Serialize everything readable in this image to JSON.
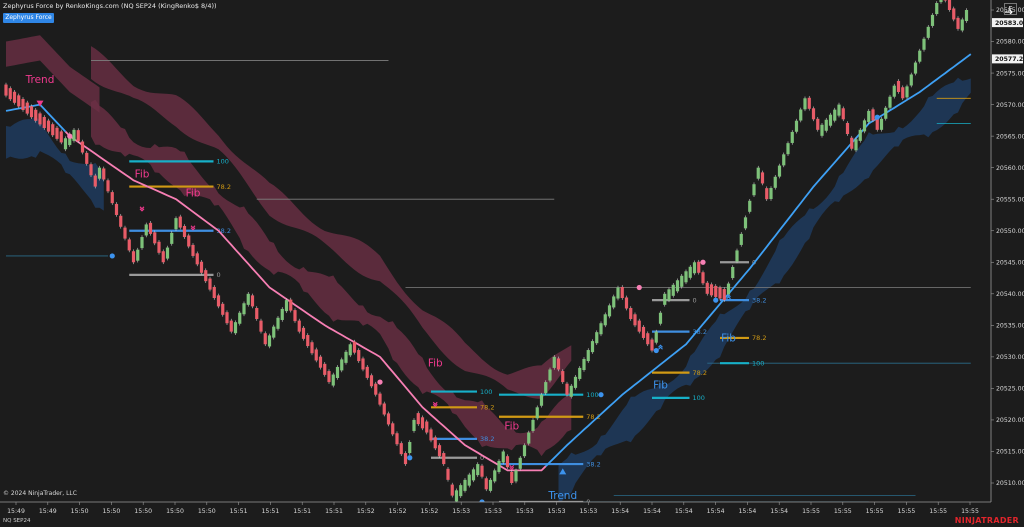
{
  "header": {
    "title": "Zephyrus Force by RenkoKings.com (NQ SEP24 (KingRenko$ 8/4))",
    "indicator_button": "Zephyrus Force",
    "panel_button": "F",
    "scroll_icon": "arrow-right-icon"
  },
  "footer": {
    "copyright": "© 2024 NinjaTrader, LLC",
    "instrument": "NQ SEP24",
    "brand": "NINJATRADER"
  },
  "colors": {
    "background": "#1c1c1c",
    "bull_bar": "#7ec27a",
    "bear_bar": "#e85c68",
    "ma_bear": "#f77fb4",
    "ma_bull": "#3ea0f4",
    "band_bear": "#6b2f45",
    "band_bull": "#1e3b5e",
    "fib_100": "#17b0c8",
    "fib_78": "#d19a14",
    "fib_38": "#3f8ee0",
    "fib_0": "#9a9a9a",
    "signal_pink": "#f03a8e",
    "signal_blue": "#3c93ee"
  },
  "chart_data": {
    "type": "candlestick",
    "chart_style": "renko",
    "brick_size": 1.75,
    "y_axis": {
      "range": [
        20505.5,
        20588
      ],
      "ticks": [
        20510,
        20515,
        20520,
        20525,
        20530,
        20535,
        20540,
        20545,
        20550,
        20555,
        20560,
        20565,
        20570,
        20575,
        20580,
        20585
      ],
      "tick_labels": [
        "20510.00",
        "20515.00",
        "20520.00",
        "20525.00",
        "20530.00",
        "20535.00",
        "20540.00",
        "20545.00",
        "20550.00",
        "20555.00",
        "20560.00",
        "20565.00",
        "20570.00",
        "20575.00",
        "20580.00",
        "20585.00"
      ],
      "price_markers": [
        {
          "label": "20583.00",
          "value": 20583.0
        },
        {
          "label": "20577.25",
          "value": 20577.25
        }
      ]
    },
    "x_axis": {
      "time_labels": [
        "15:49",
        "15:49",
        "15:50",
        "15:50",
        "15:50",
        "15:50",
        "15:50",
        "15:51",
        "15:51",
        "15:51",
        "15:51",
        "15:52",
        "15:52",
        "15:52",
        "15:53",
        "15:53",
        "15:53",
        "15:53",
        "15:53",
        "15:54",
        "15:54",
        "15:54",
        "15:54",
        "15:54",
        "15:54",
        "15:55",
        "15:55",
        "15:55",
        "15:55",
        "15:55",
        "15:55"
      ]
    },
    "price_path": [
      [
        0,
        20572
      ],
      [
        14,
        20564
      ],
      [
        17,
        20566
      ],
      [
        22,
        20557
      ],
      [
        23,
        20560
      ],
      [
        31,
        20545
      ],
      [
        34,
        20551
      ],
      [
        38,
        20545
      ],
      [
        41,
        20552
      ],
      [
        45,
        20546
      ],
      [
        54,
        20534
      ],
      [
        58,
        20540
      ],
      [
        62,
        20532
      ],
      [
        67,
        20539
      ],
      [
        70,
        20534
      ],
      [
        77,
        20526
      ],
      [
        82,
        20532
      ],
      [
        88,
        20524
      ],
      [
        95,
        20513
      ],
      [
        97,
        20520
      ],
      [
        100,
        20518
      ],
      [
        104,
        20513
      ],
      [
        106,
        20508
      ],
      [
        112,
        20513
      ],
      [
        114,
        20509
      ],
      [
        118,
        20515
      ],
      [
        120,
        20510
      ],
      [
        130,
        20530
      ],
      [
        133,
        20524
      ],
      [
        145,
        20541
      ],
      [
        148,
        20536
      ],
      [
        153,
        20531
      ],
      [
        156,
        20540
      ],
      [
        163,
        20545
      ],
      [
        166,
        20540
      ],
      [
        170,
        20539
      ],
      [
        178,
        20560
      ],
      [
        180,
        20555
      ],
      [
        189,
        20571
      ],
      [
        192,
        20566
      ],
      [
        197,
        20570
      ],
      [
        200,
        20563
      ],
      [
        204,
        20569
      ],
      [
        206,
        20566
      ],
      [
        210,
        20573
      ],
      [
        212,
        20571
      ],
      [
        221,
        20588
      ],
      [
        225,
        20582
      ],
      [
        227,
        20585
      ]
    ],
    "trend_ma": [
      [
        0,
        20569
      ],
      [
        8,
        20570
      ],
      [
        15,
        20565
      ],
      [
        30,
        20558
      ],
      [
        40,
        20555
      ],
      [
        50,
        20550
      ],
      [
        62,
        20541
      ],
      [
        75,
        20535
      ],
      [
        88,
        20530
      ],
      [
        98,
        20522
      ],
      [
        108,
        20516
      ],
      [
        118,
        20512
      ],
      [
        126,
        20512
      ],
      [
        132,
        20516
      ],
      [
        145,
        20524
      ],
      [
        160,
        20532
      ],
      [
        175,
        20544
      ],
      [
        190,
        20557
      ],
      [
        203,
        20567
      ],
      [
        215,
        20572
      ],
      [
        227,
        20578
      ]
    ],
    "bands": [
      {
        "start": 0,
        "end": 23,
        "trend": "bull"
      },
      {
        "start": 20,
        "end": 133,
        "trend": "bear"
      },
      {
        "start": 130,
        "end": 227,
        "trend": "bull"
      }
    ],
    "fibs": [
      {
        "trend": "bear",
        "start": 29,
        "end": 46,
        "levels": [
          {
            "label": "100",
            "value": 20561
          },
          {
            "label": "78.2",
            "value": 20557
          },
          {
            "label": "38.2",
            "value": 20550
          },
          {
            "label": "0",
            "value": 20543
          }
        ]
      },
      {
        "trend": "bear",
        "start": 100,
        "end": 108,
        "levels": [
          {
            "label": "100",
            "value": 20524.5
          },
          {
            "label": "78.2",
            "value": 20522
          },
          {
            "label": "38.2",
            "value": 20517
          },
          {
            "label": "0",
            "value": 20514
          }
        ]
      },
      {
        "trend": "bull",
        "start": 116,
        "end": 133,
        "levels": [
          {
            "label": "100",
            "value": 20524
          },
          {
            "label": "78.2",
            "value": 20520.5
          },
          {
            "label": "38.2",
            "value": 20513
          },
          {
            "label": "0",
            "value": 20507
          }
        ]
      },
      {
        "trend": "bull",
        "start": 152,
        "end": 158,
        "levels": [
          {
            "label": "100",
            "value": 20523.5
          },
          {
            "label": "78.2",
            "value": 20527.5
          },
          {
            "label": "38.2",
            "value": 20534
          },
          {
            "label": "0",
            "value": 20539
          }
        ]
      },
      {
        "trend": "bull",
        "start": 168,
        "end": 172,
        "levels": [
          {
            "label": "100",
            "value": 20529
          },
          {
            "label": "78.2",
            "value": 20533
          },
          {
            "label": "38.2",
            "value": 20539
          },
          {
            "label": "0",
            "value": 20545
          }
        ]
      }
    ],
    "signals": [
      {
        "text": "Trend",
        "type": "trend",
        "dir": "down",
        "i": 8,
        "value": 20570,
        "label_value": 20574
      },
      {
        "text": "Fib",
        "type": "fib",
        "dir": "down",
        "i": 32,
        "value": 20553,
        "label_value": 20559
      },
      {
        "text": "Fib",
        "type": "fib",
        "dir": "down",
        "i": 44,
        "value": 20550,
        "label_value": 20556
      },
      {
        "text": "Fib",
        "type": "fib",
        "dir": "down",
        "i": 101,
        "value": 20522,
        "label_value": 20529
      },
      {
        "text": "Fib",
        "type": "fib",
        "dir": "down",
        "i": 119,
        "value": 20512,
        "label_value": 20519
      },
      {
        "text": "Trend",
        "type": "trend",
        "dir": "up",
        "i": 131,
        "value": 20512,
        "label_value": 20508
      },
      {
        "text": "Fib",
        "type": "fib",
        "dir": "up",
        "i": 154,
        "value": 20532,
        "label_value": 20525.5
      },
      {
        "text": "Fib",
        "type": "fib",
        "dir": "up",
        "i": 170,
        "value": 20540,
        "label_value": 20533
      }
    ],
    "swing_dots": [
      {
        "i": 15,
        "value": 20565,
        "trend": "bear"
      },
      {
        "i": 25,
        "value": 20546,
        "trend": "bull"
      },
      {
        "i": 88,
        "value": 20526,
        "trend": "bear"
      },
      {
        "i": 95,
        "value": 20514,
        "trend": "bull"
      },
      {
        "i": 112,
        "value": 20507,
        "trend": "bull"
      },
      {
        "i": 149,
        "value": 20541,
        "trend": "bear"
      },
      {
        "i": 140,
        "value": 20524,
        "trend": "bull"
      },
      {
        "i": 153,
        "value": 20531,
        "trend": "bull"
      },
      {
        "i": 164,
        "value": 20545,
        "trend": "bear"
      },
      {
        "i": 167,
        "value": 20539,
        "trend": "bull"
      },
      {
        "i": 205,
        "value": 20568,
        "trend": "bull"
      },
      {
        "i": 218,
        "value": 20587,
        "trend": "bear"
      }
    ],
    "reference_lines": [
      {
        "value": 20577,
        "from": 20,
        "to": 90,
        "color": "#7f7f7f"
      },
      {
        "value": 20555,
        "from": 59,
        "to": 129,
        "color": "#7f7f7f"
      },
      {
        "value": 20541,
        "from": 94,
        "to": 227,
        "color": "#7f7f7f"
      },
      {
        "value": 20546,
        "from": 0,
        "to": 24,
        "color": "#2a6b8a"
      },
      {
        "value": 20529,
        "from": 165,
        "to": 227,
        "color": "#2a6b8a"
      },
      {
        "value": 20508,
        "from": 143,
        "to": 214,
        "color": "#2a6b8a"
      },
      {
        "value": 20507,
        "from": 118,
        "to": 203,
        "color": "#2a6b8a"
      },
      {
        "value": 20571,
        "from": 219,
        "to": 227,
        "color": "#d19a14"
      },
      {
        "value": 20567,
        "from": 219,
        "to": 227,
        "color": "#17b0c8"
      }
    ]
  }
}
